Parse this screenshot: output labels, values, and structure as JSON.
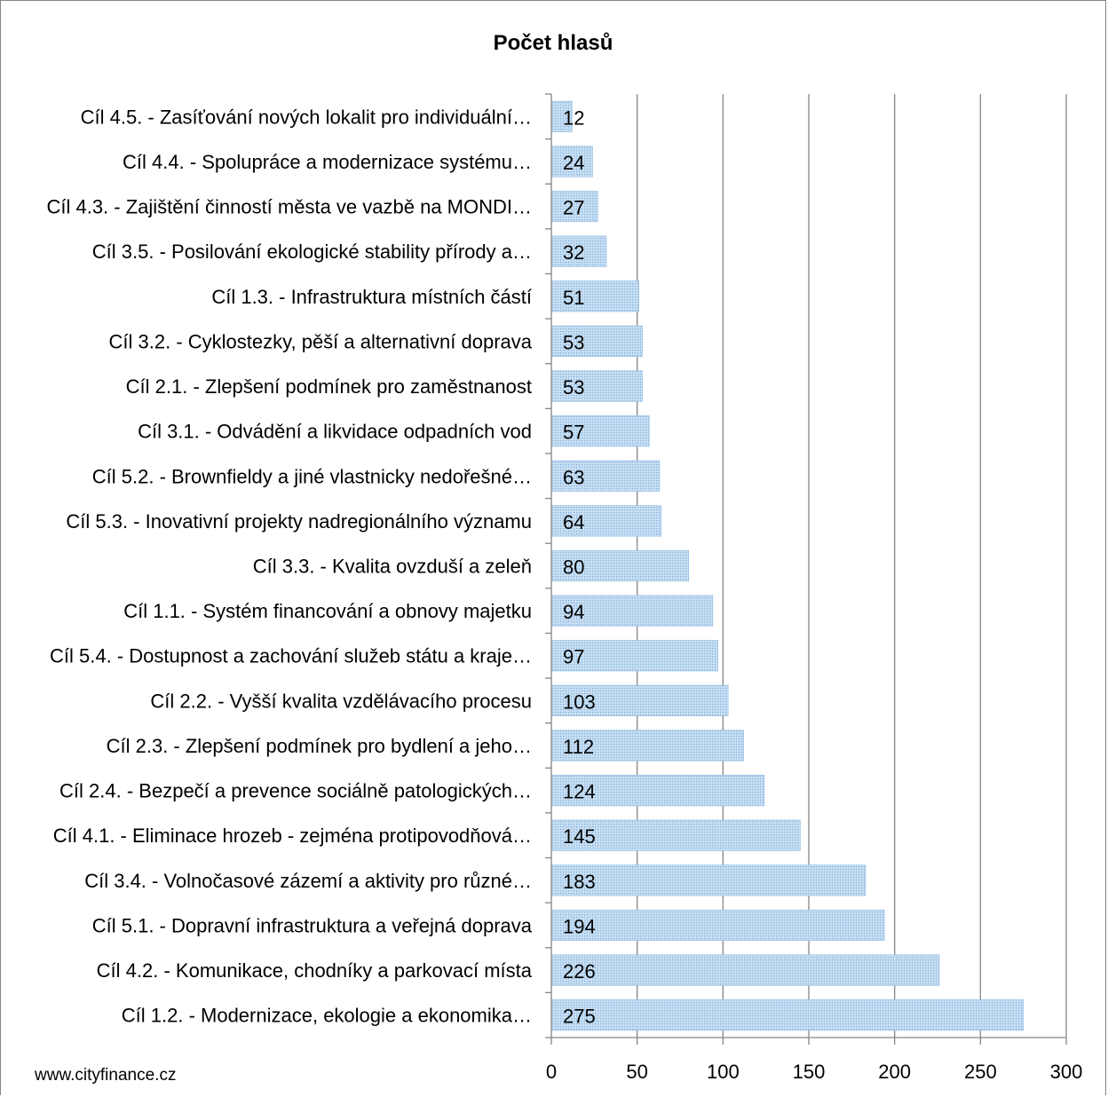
{
  "chart_data": {
    "type": "bar",
    "orientation": "horizontal",
    "title": "Počet hlasů",
    "categories": [
      "Cíl 4.5. - Zasíťování nových lokalit pro individuální…",
      "Cíl 4.4. - Spolupráce a modernizace systému…",
      "Cíl 4.3. - Zajištění činností města ve vazbě na MONDI…",
      "Cíl 3.5. - Posilování ekologické stability přírody a…",
      "Cíl 1.3. - Infrastruktura místních částí",
      "Cíl 3.2. - Cyklostezky, pěší a alternativní doprava",
      "Cíl 2.1. - Zlepšení podmínek pro zaměstnanost",
      "Cíl 3.1. - Odvádění a likvidace odpadních vod",
      "Cíl 5.2. - Brownfieldy a jiné vlastnicky nedořešné…",
      "Cíl 5.3. - Inovativní projekty nadregionálního významu",
      "Cíl 3.3. - Kvalita ovzduší a zeleň",
      "Cíl 1.1. - Systém financování a obnovy majetku",
      "Cíl 5.4. - Dostupnost a zachování služeb státu a kraje…",
      "Cíl 2.2. - Vyšší kvalita vzdělávacího procesu",
      "Cíl 2.3. - Zlepšení podmínek pro bydlení a jeho…",
      "Cíl 2.4. - Bezpečí a prevence sociálně patologických…",
      "Cíl 4.1. - Eliminace hrozeb - zejména protipovodňová…",
      "Cíl 3.4. - Volnočasové zázemí a aktivity pro různé…",
      "Cíl 5.1. - Dopravní infrastruktura a veřejná doprava",
      "Cíl 4.2. - Komunikace, chodníky a parkovací místa",
      "Cíl 1.2. - Modernizace, ekologie a ekonomika…"
    ],
    "values": [
      12,
      24,
      27,
      32,
      51,
      53,
      53,
      57,
      63,
      64,
      80,
      94,
      97,
      103,
      112,
      124,
      145,
      183,
      194,
      226,
      275
    ],
    "data_labels": [
      "12",
      "24",
      "27",
      "32",
      "51",
      "53",
      "53",
      "57",
      "63",
      "64",
      "80",
      "94",
      "97",
      "103",
      "112",
      "124",
      "145",
      "183",
      "194",
      "226",
      "275"
    ],
    "xlim": [
      0,
      300
    ],
    "xticks": [
      "0",
      "50",
      "100",
      "150",
      "200",
      "250",
      "300"
    ],
    "xtick_values": [
      0,
      50,
      100,
      150,
      200,
      250,
      300
    ],
    "grid": true,
    "legend": "none",
    "bar_color": "#a9cde8",
    "bar_pattern_color": "#5b9bd5",
    "gridline_color": "#868686"
  },
  "footer": {
    "source": "www.cityfinance.cz"
  }
}
